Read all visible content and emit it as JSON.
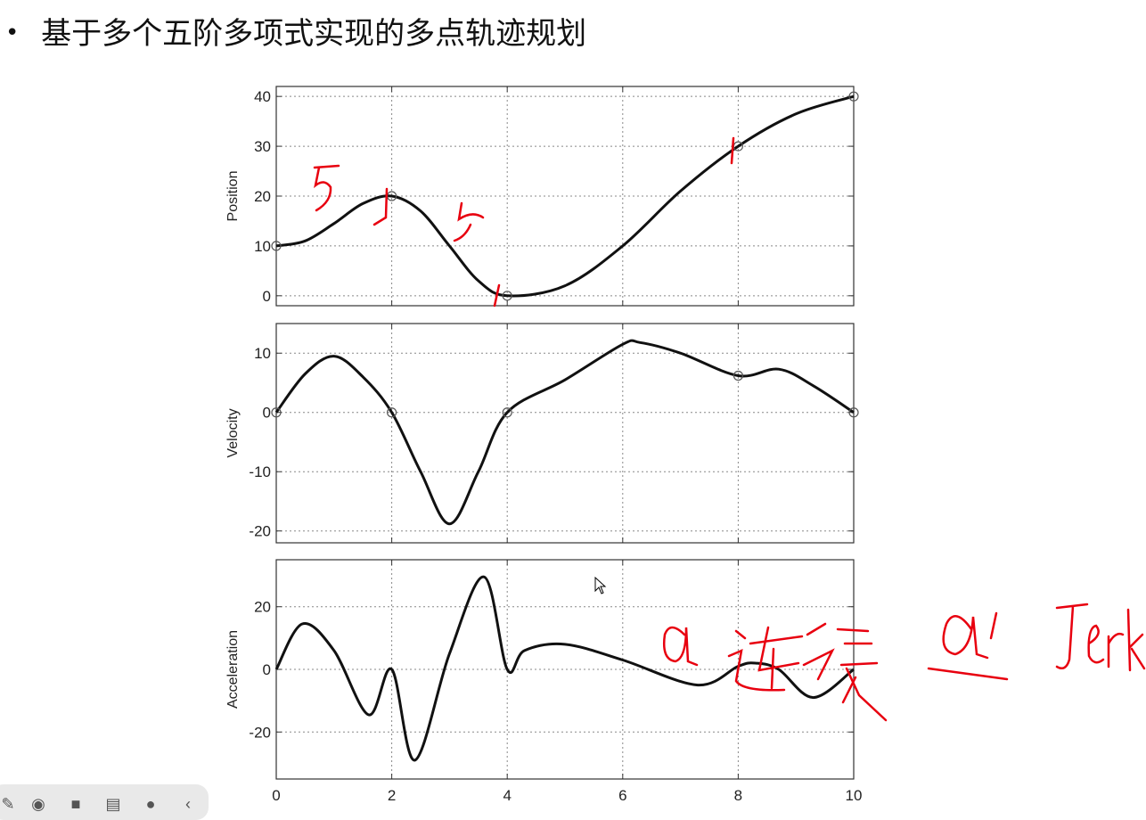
{
  "slide": {
    "bullet": "•",
    "title": "基于多个五阶多项式实现的多点轨迹规划"
  },
  "annotations": {
    "five_a": "5",
    "five_b": "5",
    "note_a": "a",
    "note_lianxu": "连续",
    "note_a_prime": "a'",
    "note_jerk": "Jerk"
  },
  "colors": {
    "curve": "#111111",
    "ink": "#e8000f",
    "grid": "#888888",
    "frame": "#333333"
  },
  "chart_data": [
    {
      "type": "line",
      "title": "",
      "xlabel": "",
      "ylabel": "Position",
      "xlim": [
        0,
        10
      ],
      "ylim": [
        -2,
        42
      ],
      "xticks": [
        0,
        2,
        4,
        6,
        8,
        10
      ],
      "yticks": [
        0,
        10,
        20,
        30,
        40
      ],
      "grid": true,
      "waypoints_x": [
        0,
        2,
        4,
        8,
        10
      ],
      "waypoints_y": [
        10,
        20,
        0,
        30,
        40
      ],
      "x": [
        0,
        0.5,
        1,
        1.5,
        2,
        2.5,
        3,
        3.5,
        4,
        5,
        6,
        7,
        8,
        9,
        10
      ],
      "values": [
        10,
        11,
        14.5,
        18.5,
        20,
        17,
        10,
        3,
        0,
        2,
        10,
        21,
        30,
        36.5,
        40
      ]
    },
    {
      "type": "line",
      "title": "",
      "xlabel": "",
      "ylabel": "Velocity",
      "xlim": [
        0,
        10
      ],
      "ylim": [
        -22,
        15
      ],
      "xticks": [
        0,
        2,
        4,
        6,
        8,
        10
      ],
      "yticks": [
        -20,
        -10,
        0,
        10
      ],
      "grid": true,
      "waypoints_x": [
        0,
        2,
        4,
        8,
        10
      ],
      "waypoints_y": [
        0,
        0,
        0,
        6.2,
        0
      ],
      "x": [
        0,
        0.5,
        1,
        1.5,
        2,
        2.5,
        3,
        3.5,
        4,
        5,
        6,
        6.3,
        7,
        8,
        8.7,
        9.3,
        10
      ],
      "values": [
        0,
        6.5,
        9.5,
        6,
        0,
        -10,
        -18.8,
        -10,
        0,
        5.5,
        11.5,
        11.8,
        10,
        6.2,
        7.3,
        4.5,
        0
      ]
    },
    {
      "type": "line",
      "title": "",
      "xlabel": "",
      "ylabel": "Acceleration",
      "xlim": [
        0,
        10
      ],
      "ylim": [
        -35,
        35
      ],
      "xticks": [
        0,
        2,
        4,
        6,
        8,
        10
      ],
      "xticklabels": [
        "0",
        "2",
        "4",
        "6",
        "8",
        "10"
      ],
      "yticks": [
        -20,
        0,
        20
      ],
      "grid": true,
      "x": [
        0,
        0.45,
        1,
        1.6,
        2,
        2.4,
        3,
        3.6,
        4,
        4.3,
        5,
        6,
        7.3,
        8,
        8.3,
        8.7,
        9.3,
        10
      ],
      "values": [
        0,
        14.5,
        6,
        -14.5,
        0,
        -29,
        5,
        29.5,
        0,
        6,
        8,
        3,
        -5,
        1,
        2,
        0,
        -9,
        0
      ]
    }
  ]
}
